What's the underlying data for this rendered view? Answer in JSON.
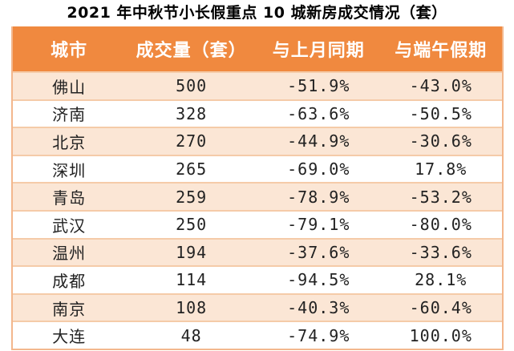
{
  "title": "2021 年中秋节小长假重点 10 城新房成交情况（套）",
  "colors": {
    "header_bg": "#F0893F",
    "header_text": "#FFFFFF",
    "row_alt_bg": "#FBE6D5",
    "row_bg": "#FFFFFF",
    "grid_line": "#F5CBA8",
    "outer_border": "#F3B78D",
    "title_text": "#000000",
    "cell_text": "#222222"
  },
  "table": {
    "columns": [
      "城市",
      "成交量（套）",
      "与上月同期",
      "与端午假期"
    ],
    "rows": [
      {
        "city": "佛山",
        "volume": "500",
        "vs_last_month": "-51.9%",
        "vs_duanwu": "-43.0%"
      },
      {
        "city": "济南",
        "volume": "328",
        "vs_last_month": "-63.6%",
        "vs_duanwu": "-50.5%"
      },
      {
        "city": "北京",
        "volume": "270",
        "vs_last_month": "-44.9%",
        "vs_duanwu": "-30.6%"
      },
      {
        "city": "深圳",
        "volume": "265",
        "vs_last_month": "-69.0%",
        "vs_duanwu": "17.8%"
      },
      {
        "city": "青岛",
        "volume": "259",
        "vs_last_month": "-78.9%",
        "vs_duanwu": "-53.2%"
      },
      {
        "city": "武汉",
        "volume": "250",
        "vs_last_month": "-79.1%",
        "vs_duanwu": "-80.0%"
      },
      {
        "city": "温州",
        "volume": "194",
        "vs_last_month": "-37.6%",
        "vs_duanwu": "-33.6%"
      },
      {
        "city": "成都",
        "volume": "114",
        "vs_last_month": "-94.5%",
        "vs_duanwu": "28.1%"
      },
      {
        "city": "南京",
        "volume": "108",
        "vs_last_month": "-40.3%",
        "vs_duanwu": "-60.4%"
      },
      {
        "city": "大连",
        "volume": "48",
        "vs_last_month": "-74.9%",
        "vs_duanwu": "100.0%"
      }
    ]
  },
  "chart_data": {
    "type": "table",
    "title": "2021 年中秋节小长假重点 10 城新房成交情况（套）",
    "columns": [
      "城市",
      "成交量（套）",
      "与上月同期",
      "与端午假期"
    ],
    "rows": [
      [
        "佛山",
        500,
        "-51.9%",
        "-43.0%"
      ],
      [
        "济南",
        328,
        "-63.6%",
        "-50.5%"
      ],
      [
        "北京",
        270,
        "-44.9%",
        "-30.6%"
      ],
      [
        "深圳",
        265,
        "-69.0%",
        "17.8%"
      ],
      [
        "青岛",
        259,
        "-78.9%",
        "-53.2%"
      ],
      [
        "武汉",
        250,
        "-79.1%",
        "-80.0%"
      ],
      [
        "温州",
        194,
        "-37.6%",
        "-33.6%"
      ],
      [
        "成都",
        114,
        "-94.5%",
        "28.1%"
      ],
      [
        "南京",
        108,
        "-40.3%",
        "-60.4%"
      ],
      [
        "大连",
        48,
        "-74.9%",
        "100.0%"
      ]
    ]
  }
}
